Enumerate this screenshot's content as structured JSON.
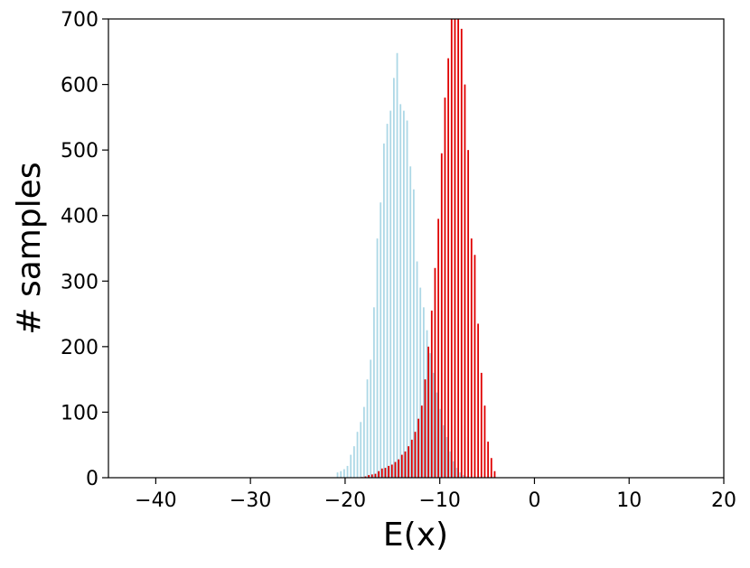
{
  "chart_data": {
    "type": "bar",
    "title": "",
    "xlabel": "E(x)",
    "ylabel": "# samples",
    "xlim": [
      -45,
      20
    ],
    "ylim": [
      0,
      700
    ],
    "x_ticks": [
      -40,
      -30,
      -20,
      -10,
      0,
      10,
      20
    ],
    "x_tick_labels": [
      "−40",
      "−30",
      "−20",
      "−10",
      "0",
      "10",
      "20"
    ],
    "y_ticks": [
      0,
      100,
      200,
      300,
      400,
      500,
      600,
      700
    ],
    "y_tick_labels": [
      "0",
      "100",
      "200",
      "300",
      "400",
      "500",
      "600",
      "700"
    ],
    "grid": false,
    "legend": "none",
    "series": [
      {
        "color": "#add8e6",
        "x": [
          -20.8,
          -20.45,
          -20.1,
          -19.75,
          -19.4,
          -19.05,
          -18.7,
          -18.35,
          -18.0,
          -17.65,
          -17.3,
          -16.95,
          -16.6,
          -16.25,
          -15.9,
          -15.55,
          -15.2,
          -14.85,
          -14.5,
          -14.15,
          -13.8,
          -13.45,
          -13.1,
          -12.75,
          -12.4,
          -12.05,
          -11.7,
          -11.35,
          -11.0,
          -10.65,
          -10.3,
          -9.95,
          -9.6,
          -9.25,
          -8.9,
          -8.55,
          -8.2,
          -7.85,
          -7.5,
          -7.15,
          -6.8
        ],
        "values": [
          8,
          10,
          13,
          18,
          35,
          48,
          70,
          85,
          108,
          150,
          180,
          260,
          365,
          420,
          510,
          540,
          560,
          610,
          648,
          570,
          560,
          545,
          475,
          440,
          330,
          290,
          260,
          225,
          190,
          160,
          130,
          105,
          80,
          62,
          40,
          25,
          15,
          8,
          4,
          2,
          1
        ]
      },
      {
        "color": "#e00000",
        "x": [
          -18.2,
          -17.85,
          -17.5,
          -17.15,
          -16.8,
          -16.45,
          -16.1,
          -15.75,
          -15.4,
          -15.05,
          -14.7,
          -14.35,
          -14.0,
          -13.65,
          -13.3,
          -12.95,
          -12.6,
          -12.25,
          -11.9,
          -11.55,
          -11.2,
          -10.85,
          -10.5,
          -10.15,
          -9.8,
          -9.45,
          -9.1,
          -8.75,
          -8.4,
          -8.05,
          -7.7,
          -7.35,
          -7.0,
          -6.65,
          -6.3,
          -5.95,
          -5.6,
          -5.25,
          -4.9,
          -4.55,
          -4.2
        ],
        "values": [
          1,
          2,
          4,
          5,
          6,
          10,
          14,
          15,
          18,
          20,
          24,
          28,
          35,
          40,
          48,
          58,
          70,
          90,
          110,
          150,
          200,
          255,
          320,
          395,
          495,
          580,
          640,
          700,
          705,
          700,
          685,
          600,
          500,
          365,
          340,
          235,
          160,
          110,
          55,
          30,
          10
        ]
      }
    ]
  }
}
